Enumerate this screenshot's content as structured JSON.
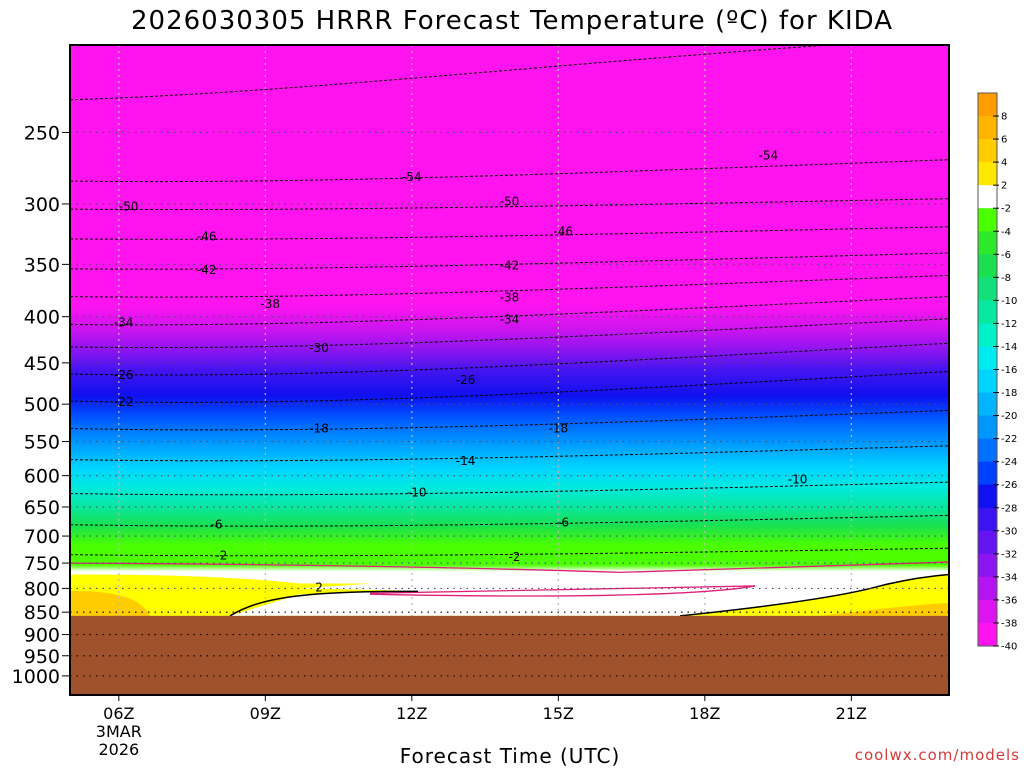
{
  "title": "2026030305 HRRR Forecast Temperature (ºC) for KIDA",
  "xlabel": "Forecast Time (UTC)",
  "credit": "coolwx.com/models",
  "chart_data": {
    "type": "heatmap",
    "title": "2026030305 HRRR Forecast Temperature (ºC) for KIDA",
    "xlabel": "Forecast Time (UTC)",
    "ylabel": "",
    "x_ticks": [
      "06Z",
      "09Z",
      "12Z",
      "15Z",
      "18Z",
      "21Z"
    ],
    "x_tick_hours": [
      6,
      9,
      12,
      15,
      18,
      21
    ],
    "x_date_label": [
      "3MAR",
      "2026"
    ],
    "xlim": [
      5,
      23
    ],
    "y_ticks": [
      250,
      300,
      350,
      400,
      450,
      500,
      550,
      600,
      650,
      700,
      750,
      800,
      850,
      900,
      950,
      1000
    ],
    "ylim": [
      200,
      1050
    ],
    "y_scale": "log",
    "y_reversed": true,
    "ground_level_hPa": 858,
    "grid": true,
    "colorbar_labels": [
      "8",
      "6",
      "4",
      "2",
      "-2",
      "-4",
      "-6",
      "-8",
      "-10",
      "-12",
      "-14",
      "-16",
      "-18",
      "-20",
      "-22",
      "-24",
      "-26",
      "-28",
      "-30",
      "-32",
      "-34",
      "-36",
      "-38",
      "-40"
    ],
    "colorbar_colors": [
      "#ff9e00",
      "#ffb400",
      "#ffcc00",
      "#ffe800",
      "#ffffff",
      "#4cff00",
      "#2ee82a",
      "#1ae050",
      "#12e07a",
      "#08e8a0",
      "#00f0c8",
      "#00eaf0",
      "#00d4ff",
      "#00b4ff",
      "#0096ff",
      "#0070ff",
      "#0040ff",
      "#1010f0",
      "#3c14f0",
      "#6414f0",
      "#8c14f0",
      "#b414f0",
      "#dc14f0",
      "#ff14f0"
    ],
    "ground_color": "#a0522d",
    "contour_labels": [
      {
        "hour": 12.0,
        "p": 280,
        "text": "-54"
      },
      {
        "hour": 19.3,
        "p": 265,
        "text": "-54"
      },
      {
        "hour": 6.2,
        "p": 302,
        "text": "-50"
      },
      {
        "hour": 14.0,
        "p": 298,
        "text": "-50"
      },
      {
        "hour": 7.8,
        "p": 326,
        "text": "-46"
      },
      {
        "hour": 15.1,
        "p": 322,
        "text": "-46"
      },
      {
        "hour": 7.8,
        "p": 355,
        "text": "-42"
      },
      {
        "hour": 14.0,
        "p": 351,
        "text": "-42"
      },
      {
        "hour": 9.1,
        "p": 387,
        "text": "-38"
      },
      {
        "hour": 14.0,
        "p": 381,
        "text": "-38"
      },
      {
        "hour": 6.1,
        "p": 406,
        "text": "-34"
      },
      {
        "hour": 14.0,
        "p": 403,
        "text": "-34"
      },
      {
        "hour": 10.1,
        "p": 433,
        "text": "-30"
      },
      {
        "hour": 6.1,
        "p": 464,
        "text": "-26"
      },
      {
        "hour": 13.1,
        "p": 470,
        "text": "-26"
      },
      {
        "hour": 6.1,
        "p": 497,
        "text": "-22"
      },
      {
        "hour": 10.1,
        "p": 532,
        "text": "-18"
      },
      {
        "hour": 15.0,
        "p": 532,
        "text": "-18"
      },
      {
        "hour": 13.1,
        "p": 578,
        "text": "-14"
      },
      {
        "hour": 12.1,
        "p": 626,
        "text": "-10"
      },
      {
        "hour": 19.9,
        "p": 606,
        "text": "-10"
      },
      {
        "hour": 8.0,
        "p": 680,
        "text": "-6"
      },
      {
        "hour": 15.1,
        "p": 676,
        "text": "-6"
      },
      {
        "hour": 8.1,
        "p": 736,
        "text": "-2"
      },
      {
        "hour": 14.1,
        "p": 738,
        "text": "-2"
      },
      {
        "hour": 10.1,
        "p": 798,
        "text": "2"
      }
    ]
  }
}
